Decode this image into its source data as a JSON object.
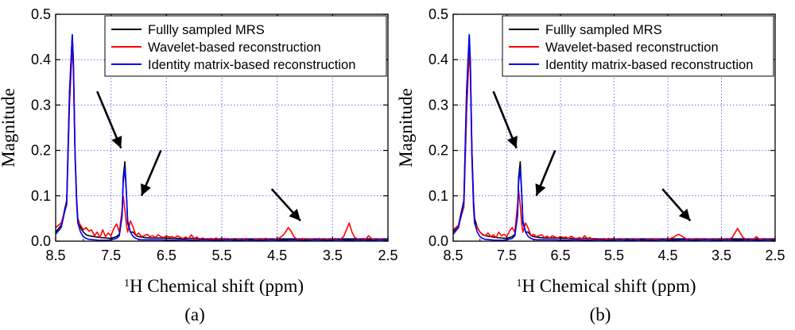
{
  "figure": {
    "panels": [
      {
        "id": "a",
        "caption": "(a)"
      },
      {
        "id": "b",
        "caption": "(b)"
      }
    ]
  },
  "chart_data": [
    {
      "type": "line",
      "caption": "(a)",
      "xlabel_sup": "1",
      "xlabel": "H Chemical shift (ppm)",
      "ylabel": "Magnitude",
      "xlim": [
        8.5,
        2.5
      ],
      "x_reversed": true,
      "ylim": [
        0,
        0.5
      ],
      "xticks": [
        "8.5",
        "7.5",
        "6.5",
        "5.5",
        "4.5",
        "3.5",
        "2.5"
      ],
      "yticks": [
        "0.0",
        "0.1",
        "0.2",
        "0.3",
        "0.4",
        "0.5"
      ],
      "grid": "dotted",
      "grid_color": "#6b6bff",
      "legend_position": "top-right",
      "series": [
        {
          "name": "Fullly sampled MRS",
          "color": "#000000",
          "x": [
            8.5,
            8.4,
            8.3,
            8.25,
            8.2,
            8.18,
            8.15,
            8.12,
            8.1,
            8.05,
            8.0,
            7.95,
            7.9,
            7.8,
            7.7,
            7.6,
            7.5,
            7.4,
            7.35,
            7.3,
            7.28,
            7.25,
            7.22,
            7.2,
            7.15,
            7.1,
            7.05,
            7.0,
            6.95,
            6.9,
            6.8,
            6.6,
            6.4,
            6.2,
            6.0,
            5.8,
            5.6,
            5.4,
            5.2,
            5.0,
            4.8,
            4.6,
            4.4,
            4.2,
            4.0,
            3.8,
            3.6,
            3.4,
            3.2,
            3.0,
            2.8,
            2.6,
            2.5
          ],
          "y": [
            0.02,
            0.035,
            0.09,
            0.33,
            0.455,
            0.4,
            0.2,
            0.09,
            0.05,
            0.03,
            0.02,
            0.014,
            0.012,
            0.01,
            0.008,
            0.007,
            0.006,
            0.01,
            0.015,
            0.06,
            0.14,
            0.175,
            0.1,
            0.04,
            0.02,
            0.02,
            0.012,
            0.01,
            0.009,
            0.008,
            0.007,
            0.007,
            0.006,
            0.006,
            0.006,
            0.005,
            0.005,
            0.005,
            0.005,
            0.005,
            0.005,
            0.005,
            0.005,
            0.005,
            0.005,
            0.005,
            0.005,
            0.005,
            0.005,
            0.005,
            0.005,
            0.005,
            0.005
          ]
        },
        {
          "name": "Wavelet-based reconstruction",
          "color": "#ff0000",
          "x": [
            8.5,
            8.4,
            8.3,
            8.25,
            8.2,
            8.18,
            8.15,
            8.12,
            8.1,
            8.05,
            8.0,
            7.95,
            7.9,
            7.85,
            7.8,
            7.75,
            7.7,
            7.65,
            7.6,
            7.55,
            7.5,
            7.45,
            7.4,
            7.35,
            7.3,
            7.28,
            7.25,
            7.22,
            7.2,
            7.15,
            7.1,
            7.05,
            7.0,
            6.95,
            6.9,
            6.85,
            6.8,
            6.75,
            6.7,
            6.65,
            6.6,
            6.55,
            6.5,
            6.45,
            6.4,
            6.35,
            6.3,
            6.25,
            6.2,
            6.15,
            6.1,
            6.05,
            6.0,
            5.95,
            5.9,
            5.85,
            5.8,
            5.75,
            5.7,
            5.65,
            5.6,
            5.55,
            5.5,
            5.45,
            5.4,
            5.35,
            5.3,
            5.25,
            5.2,
            5.15,
            5.1,
            5.05,
            5.0,
            4.95,
            4.9,
            4.85,
            4.8,
            4.75,
            4.7,
            4.65,
            4.6,
            4.55,
            4.5,
            4.45,
            4.4,
            4.35,
            4.3,
            4.25,
            4.2,
            4.15,
            4.1,
            4.05,
            4.0,
            3.95,
            3.9,
            3.85,
            3.8,
            3.75,
            3.7,
            3.65,
            3.6,
            3.55,
            3.5,
            3.45,
            3.4,
            3.35,
            3.3,
            3.25,
            3.2,
            3.15,
            3.1,
            3.05,
            3.0,
            2.95,
            2.9,
            2.85,
            2.8,
            2.75,
            2.7,
            2.65,
            2.6,
            2.55,
            2.5
          ],
          "y": [
            0.03,
            0.04,
            0.08,
            0.3,
            0.43,
            0.38,
            0.19,
            0.08,
            0.045,
            0.035,
            0.025,
            0.03,
            0.022,
            0.025,
            0.012,
            0.02,
            0.008,
            0.025,
            0.01,
            0.018,
            0.012,
            0.028,
            0.038,
            0.02,
            0.07,
            0.1,
            0.07,
            0.035,
            0.02,
            0.045,
            0.03,
            0.012,
            0.018,
            0.01,
            0.012,
            0.015,
            0.01,
            0.012,
            0.008,
            0.014,
            0.01,
            0.008,
            0.012,
            0.009,
            0.01,
            0.007,
            0.012,
            0.008,
            0.006,
            0.009,
            0.005,
            0.014,
            0.006,
            0.009,
            0.004,
            0.007,
            0.005,
            0.003,
            0.006,
            0.004,
            0.007,
            0.003,
            0.004,
            0.006,
            0.003,
            0.005,
            0.004,
            0.002,
            0.005,
            0.003,
            0.004,
            0.006,
            0.003,
            0.002,
            0.005,
            0.004,
            0.003,
            0.005,
            0.006,
            0.004,
            0.003,
            0.005,
            0.004,
            0.008,
            0.012,
            0.02,
            0.03,
            0.022,
            0.01,
            0.005,
            0.003,
            0.006,
            0.004,
            0.003,
            0.005,
            0.004,
            0.003,
            0.006,
            0.004,
            0.003,
            0.005,
            0.003,
            0.004,
            0.006,
            0.003,
            0.005,
            0.01,
            0.025,
            0.04,
            0.02,
            0.008,
            0.005,
            0.003,
            0.006,
            0.004,
            0.012,
            0.006,
            0.004,
            0.003,
            0.005,
            0.004,
            0.003,
            0.004
          ]
        },
        {
          "name": "Identity matrix-based reconstruction",
          "color": "#0000ff",
          "x": [
            8.5,
            8.4,
            8.3,
            8.25,
            8.2,
            8.18,
            8.15,
            8.12,
            8.1,
            8.05,
            8.0,
            7.95,
            7.9,
            7.8,
            7.7,
            7.6,
            7.5,
            7.4,
            7.35,
            7.3,
            7.28,
            7.25,
            7.22,
            7.2,
            7.15,
            7.1,
            7.05,
            7.0,
            6.95,
            6.9,
            6.8,
            6.6,
            6.4,
            6.2,
            6.0,
            5.8,
            5.6,
            5.4,
            5.2,
            5.0,
            4.8,
            4.6,
            4.4,
            4.2,
            4.0,
            3.8,
            3.6,
            3.4,
            3.2,
            3.0,
            2.8,
            2.6,
            2.5
          ],
          "y": [
            0.015,
            0.03,
            0.085,
            0.32,
            0.455,
            0.39,
            0.19,
            0.085,
            0.04,
            0.02,
            0.01,
            0.006,
            0.004,
            0.003,
            0.002,
            0.002,
            0.003,
            0.006,
            0.012,
            0.055,
            0.13,
            0.16,
            0.1,
            0.045,
            0.02,
            0.01,
            0.006,
            0.004,
            0.003,
            0.003,
            0.003,
            0.003,
            0.002,
            0.003,
            0.002,
            0.003,
            0.002,
            0.003,
            0.002,
            0.003,
            0.002,
            0.003,
            0.002,
            0.003,
            0.002,
            0.003,
            0.002,
            0.003,
            0.002,
            0.003,
            0.002,
            0.003,
            0.002
          ]
        }
      ]
    },
    {
      "type": "line",
      "caption": "(b)",
      "xlabel_sup": "1",
      "xlabel": "H Chemical shift (ppm)",
      "ylabel": "Magnitude",
      "xlim": [
        8.5,
        2.5
      ],
      "x_reversed": true,
      "ylim": [
        0,
        0.5
      ],
      "xticks": [
        "8.5",
        "7.5",
        "6.5",
        "5.5",
        "4.5",
        "3.5",
        "2.5"
      ],
      "yticks": [
        "0.0",
        "0.1",
        "0.2",
        "0.3",
        "0.4",
        "0.5"
      ],
      "grid": "dotted",
      "grid_color": "#6b6bff",
      "legend_position": "top-right",
      "series": [
        {
          "name": "Fullly sampled MRS",
          "color": "#000000",
          "x": [
            8.5,
            8.4,
            8.3,
            8.25,
            8.2,
            8.18,
            8.15,
            8.12,
            8.1,
            8.05,
            8.0,
            7.95,
            7.9,
            7.8,
            7.7,
            7.6,
            7.5,
            7.4,
            7.35,
            7.3,
            7.28,
            7.25,
            7.22,
            7.2,
            7.15,
            7.1,
            7.05,
            7.0,
            6.95,
            6.9,
            6.8,
            6.6,
            6.4,
            6.2,
            6.0,
            5.8,
            5.6,
            5.4,
            5.2,
            5.0,
            4.8,
            4.6,
            4.4,
            4.2,
            4.0,
            3.8,
            3.6,
            3.4,
            3.2,
            3.0,
            2.8,
            2.6,
            2.5
          ],
          "y": [
            0.02,
            0.035,
            0.09,
            0.33,
            0.455,
            0.4,
            0.2,
            0.09,
            0.05,
            0.03,
            0.02,
            0.014,
            0.012,
            0.01,
            0.008,
            0.007,
            0.006,
            0.01,
            0.015,
            0.06,
            0.14,
            0.175,
            0.1,
            0.04,
            0.02,
            0.02,
            0.012,
            0.01,
            0.009,
            0.008,
            0.007,
            0.007,
            0.006,
            0.006,
            0.006,
            0.005,
            0.005,
            0.005,
            0.005,
            0.005,
            0.005,
            0.005,
            0.005,
            0.005,
            0.005,
            0.005,
            0.005,
            0.005,
            0.005,
            0.005,
            0.005,
            0.005,
            0.005
          ]
        },
        {
          "name": "Wavelet-based reconstruction",
          "color": "#ff0000",
          "x": [
            8.5,
            8.4,
            8.3,
            8.25,
            8.2,
            8.18,
            8.15,
            8.12,
            8.1,
            8.05,
            8.0,
            7.95,
            7.9,
            7.85,
            7.8,
            7.75,
            7.7,
            7.65,
            7.6,
            7.55,
            7.5,
            7.45,
            7.4,
            7.35,
            7.3,
            7.28,
            7.25,
            7.22,
            7.2,
            7.15,
            7.1,
            7.05,
            7.0,
            6.95,
            6.9,
            6.85,
            6.8,
            6.75,
            6.7,
            6.65,
            6.6,
            6.55,
            6.5,
            6.45,
            6.4,
            6.35,
            6.3,
            6.25,
            6.2,
            6.15,
            6.1,
            6.05,
            6.0,
            5.95,
            5.9,
            5.85,
            5.8,
            5.75,
            5.7,
            5.65,
            5.6,
            5.55,
            5.5,
            5.45,
            5.4,
            5.35,
            5.3,
            5.25,
            5.2,
            5.15,
            5.1,
            5.05,
            5.0,
            4.95,
            4.9,
            4.85,
            4.8,
            4.75,
            4.7,
            4.65,
            4.6,
            4.55,
            4.5,
            4.45,
            4.4,
            4.35,
            4.3,
            4.25,
            4.2,
            4.15,
            4.1,
            4.05,
            4.0,
            3.95,
            3.9,
            3.85,
            3.8,
            3.75,
            3.7,
            3.65,
            3.6,
            3.55,
            3.5,
            3.45,
            3.4,
            3.35,
            3.3,
            3.25,
            3.2,
            3.15,
            3.1,
            3.05,
            3.0,
            2.95,
            2.9,
            2.85,
            2.8,
            2.75,
            2.7,
            2.65,
            2.6,
            2.55,
            2.5
          ],
          "y": [
            0.025,
            0.035,
            0.075,
            0.28,
            0.42,
            0.37,
            0.18,
            0.07,
            0.04,
            0.03,
            0.02,
            0.015,
            0.012,
            0.018,
            0.01,
            0.014,
            0.008,
            0.02,
            0.012,
            0.015,
            0.01,
            0.022,
            0.03,
            0.02,
            0.08,
            0.112,
            0.08,
            0.035,
            0.02,
            0.04,
            0.028,
            0.012,
            0.015,
            0.01,
            0.012,
            0.014,
            0.008,
            0.011,
            0.007,
            0.012,
            0.009,
            0.007,
            0.01,
            0.008,
            0.009,
            0.006,
            0.011,
            0.007,
            0.005,
            0.008,
            0.005,
            0.012,
            0.006,
            0.008,
            0.004,
            0.006,
            0.005,
            0.003,
            0.006,
            0.004,
            0.006,
            0.003,
            0.004,
            0.005,
            0.003,
            0.005,
            0.004,
            0.002,
            0.004,
            0.003,
            0.004,
            0.005,
            0.003,
            0.002,
            0.004,
            0.004,
            0.003,
            0.004,
            0.005,
            0.004,
            0.003,
            0.004,
            0.004,
            0.006,
            0.008,
            0.012,
            0.015,
            0.012,
            0.008,
            0.005,
            0.003,
            0.005,
            0.004,
            0.003,
            0.004,
            0.004,
            0.003,
            0.005,
            0.004,
            0.003,
            0.004,
            0.003,
            0.004,
            0.005,
            0.003,
            0.005,
            0.008,
            0.018,
            0.028,
            0.018,
            0.008,
            0.005,
            0.003,
            0.005,
            0.004,
            0.01,
            0.005,
            0.004,
            0.003,
            0.004,
            0.004,
            0.003,
            0.004
          ]
        },
        {
          "name": "Identity matrix-based reconstruction",
          "color": "#0000ff",
          "x": [
            8.5,
            8.4,
            8.3,
            8.25,
            8.2,
            8.18,
            8.15,
            8.12,
            8.1,
            8.05,
            8.0,
            7.95,
            7.9,
            7.8,
            7.7,
            7.6,
            7.5,
            7.4,
            7.35,
            7.3,
            7.28,
            7.25,
            7.22,
            7.2,
            7.15,
            7.1,
            7.05,
            7.0,
            6.95,
            6.9,
            6.8,
            6.6,
            6.4,
            6.2,
            6.0,
            5.8,
            5.6,
            5.4,
            5.2,
            5.0,
            4.8,
            4.6,
            4.4,
            4.2,
            4.0,
            3.8,
            3.6,
            3.4,
            3.2,
            3.0,
            2.8,
            2.6,
            2.5
          ],
          "y": [
            0.015,
            0.03,
            0.085,
            0.32,
            0.455,
            0.39,
            0.19,
            0.085,
            0.04,
            0.02,
            0.01,
            0.006,
            0.004,
            0.003,
            0.002,
            0.002,
            0.003,
            0.006,
            0.012,
            0.055,
            0.13,
            0.16,
            0.1,
            0.045,
            0.02,
            0.01,
            0.006,
            0.004,
            0.003,
            0.003,
            0.003,
            0.003,
            0.002,
            0.003,
            0.002,
            0.003,
            0.002,
            0.003,
            0.002,
            0.003,
            0.002,
            0.003,
            0.002,
            0.003,
            0.002,
            0.003,
            0.002,
            0.003,
            0.002,
            0.003,
            0.002,
            0.003,
            0.002
          ]
        }
      ]
    }
  ]
}
